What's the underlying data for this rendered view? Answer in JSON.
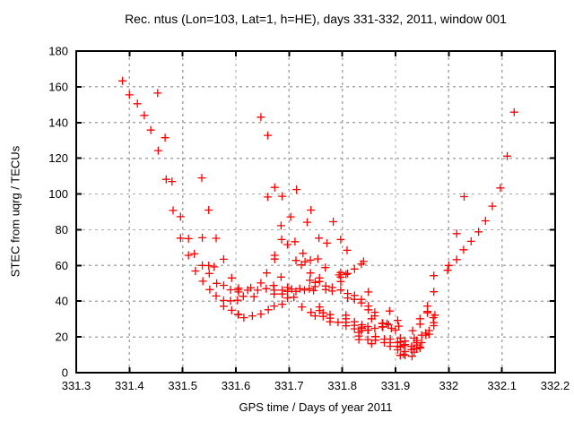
{
  "figure": {
    "title": "Rec. ntus (Lon=103, Lat=1, h=HE), days 331-332, 2011, window 001",
    "xlabel": "GPS time / Days of year 2011",
    "ylabel": "STEC from uqrg / TECUs"
  },
  "chart_data": {
    "type": "scatter",
    "title": "Rec. ntus (Lon=103, Lat=1, h=HE), days 331-332, 2011, window 001",
    "xlabel": "GPS time / Days of year 2011",
    "ylabel": "STEC from uqrg / TECUs",
    "xlim": [
      331.3,
      332.2
    ],
    "ylim": [
      0,
      180
    ],
    "xticks": [
      331.3,
      331.4,
      331.5,
      331.6,
      331.7,
      331.8,
      331.9,
      332,
      332.1,
      332.2
    ],
    "yticks": [
      0,
      20,
      40,
      60,
      80,
      100,
      120,
      140,
      160,
      180
    ],
    "grid": true,
    "legend_position": "none",
    "marker": {
      "shape": "plus",
      "color": "#ff0000",
      "size": 9
    },
    "grid_color": "#a8a8a8",
    "border_color": "#000000",
    "background_color": "#ffffff",
    "series_name": "STEC",
    "points": [
      [
        331.387,
        163.3
      ],
      [
        331.4,
        155.5
      ],
      [
        331.415,
        150.5
      ],
      [
        331.428,
        144.0
      ],
      [
        331.44,
        135.8
      ],
      [
        331.453,
        156.5
      ],
      [
        331.467,
        131.5
      ],
      [
        331.454,
        124.3
      ],
      [
        331.469,
        108.2
      ],
      [
        331.48,
        107.0
      ],
      [
        331.536,
        109.0
      ],
      [
        331.482,
        90.8
      ],
      [
        331.549,
        91.0
      ],
      [
        331.496,
        87.3
      ],
      [
        331.496,
        75.3
      ],
      [
        331.511,
        75.0
      ],
      [
        331.537,
        75.5
      ],
      [
        331.563,
        75.2
      ],
      [
        331.511,
        65.7
      ],
      [
        331.522,
        66.5
      ],
      [
        331.524,
        56.9
      ],
      [
        331.537,
        60.0
      ],
      [
        331.549,
        59.9
      ],
      [
        331.559,
        59.2
      ],
      [
        331.577,
        63.5
      ],
      [
        331.55,
        55.5
      ],
      [
        331.538,
        51.2
      ],
      [
        331.551,
        46.5
      ],
      [
        331.564,
        50.0
      ],
      [
        331.563,
        42.9
      ],
      [
        331.592,
        53.0
      ],
      [
        331.59,
        46.4
      ],
      [
        331.604,
        46.4
      ],
      [
        331.577,
        48.9
      ],
      [
        331.577,
        40.4
      ],
      [
        331.59,
        40.2
      ],
      [
        331.603,
        40.5
      ],
      [
        331.577,
        37.2
      ],
      [
        331.592,
        34.9
      ],
      [
        331.604,
        32.7
      ],
      [
        331.647,
        143.0
      ],
      [
        331.66,
        132.8
      ],
      [
        331.673,
        103.7
      ],
      [
        331.66,
        98.3
      ],
      [
        331.687,
        98.7
      ],
      [
        331.714,
        102.5
      ],
      [
        331.741,
        91.0
      ],
      [
        331.703,
        87.2
      ],
      [
        331.685,
        82.3
      ],
      [
        331.734,
        84.2
      ],
      [
        331.783,
        84.5
      ],
      [
        331.686,
        74.5
      ],
      [
        331.697,
        71.7
      ],
      [
        331.711,
        73.3
      ],
      [
        331.756,
        75.3
      ],
      [
        331.771,
        72.5
      ],
      [
        331.797,
        74.5
      ],
      [
        331.809,
        68.5
      ],
      [
        331.726,
        66.8
      ],
      [
        331.713,
        62.8
      ],
      [
        331.723,
        60.3
      ],
      [
        331.754,
        63.7
      ],
      [
        331.673,
        65.7
      ],
      [
        331.673,
        63.6
      ],
      [
        331.658,
        55.8
      ],
      [
        331.685,
        53.5
      ],
      [
        331.768,
        58.8
      ],
      [
        331.794,
        54.7
      ],
      [
        331.807,
        55.0
      ],
      [
        331.836,
        60.8
      ],
      [
        331.84,
        62.2
      ],
      [
        331.647,
        50.2
      ],
      [
        331.671,
        48.8
      ],
      [
        331.657,
        47.0
      ],
      [
        331.628,
        47.5
      ],
      [
        331.641,
        46.2
      ],
      [
        331.622,
        46.2
      ],
      [
        331.605,
        47.3
      ],
      [
        331.605,
        45.2
      ],
      [
        331.634,
        42.5
      ],
      [
        331.614,
        42.7
      ],
      [
        331.672,
        46.2
      ],
      [
        331.672,
        44.0
      ],
      [
        331.687,
        46.2
      ],
      [
        331.687,
        44.0
      ],
      [
        331.697,
        47.7
      ],
      [
        331.697,
        45.5
      ],
      [
        331.705,
        46.8
      ],
      [
        331.713,
        45.5
      ],
      [
        331.72,
        47.0
      ],
      [
        331.729,
        46.2
      ],
      [
        331.738,
        47.0
      ],
      [
        331.746,
        46.0
      ],
      [
        331.749,
        50.5
      ],
      [
        331.739,
        51.7
      ],
      [
        331.749,
        48.2
      ],
      [
        331.74,
        55.8
      ],
      [
        331.73,
        62.0
      ],
      [
        331.74,
        63.0
      ],
      [
        331.697,
        41.8
      ],
      [
        331.709,
        42.2
      ],
      [
        331.724,
        36.8
      ],
      [
        331.687,
        38.3
      ],
      [
        331.672,
        37.3
      ],
      [
        331.661,
        35.2
      ],
      [
        331.647,
        32.8
      ],
      [
        331.631,
        31.8
      ],
      [
        331.615,
        30.8
      ],
      [
        331.605,
        32.5
      ],
      [
        331.741,
        33.7
      ],
      [
        331.749,
        31.8
      ],
      [
        331.757,
        53.0
      ],
      [
        331.757,
        51.0
      ],
      [
        331.769,
        48.5
      ],
      [
        331.769,
        46.5
      ],
      [
        331.781,
        47.7
      ],
      [
        331.781,
        45.7
      ],
      [
        331.797,
        56.0
      ],
      [
        331.797,
        53.5
      ],
      [
        331.81,
        55.5
      ],
      [
        331.823,
        58.0
      ],
      [
        331.797,
        51.0
      ],
      [
        331.797,
        46.3
      ],
      [
        331.81,
        44.3
      ],
      [
        331.81,
        41.8
      ],
      [
        331.823,
        43.2
      ],
      [
        331.823,
        41.0
      ],
      [
        331.836,
        41.0
      ],
      [
        331.836,
        39.0
      ],
      [
        331.849,
        45.2
      ],
      [
        331.849,
        37.3
      ],
      [
        331.849,
        35.2
      ],
      [
        331.861,
        33.8
      ],
      [
        331.861,
        31.8
      ],
      [
        331.757,
        36.8
      ],
      [
        331.757,
        34.8
      ],
      [
        331.764,
        33.5
      ],
      [
        331.764,
        31.5
      ],
      [
        331.777,
        32.5
      ],
      [
        331.777,
        30.5
      ],
      [
        331.777,
        28.5
      ],
      [
        331.792,
        28.2
      ],
      [
        331.807,
        32.2
      ],
      [
        331.807,
        30.2
      ],
      [
        331.807,
        28.2
      ],
      [
        331.807,
        26.2
      ],
      [
        331.823,
        28.5
      ],
      [
        331.823,
        26.5
      ],
      [
        331.823,
        24.5
      ],
      [
        331.836,
        25.5
      ],
      [
        331.836,
        23.5
      ],
      [
        331.849,
        23.8
      ],
      [
        331.861,
        24.8
      ],
      [
        331.875,
        27.7
      ],
      [
        331.875,
        25.7
      ],
      [
        331.887,
        26.8
      ],
      [
        331.889,
        34.5
      ],
      [
        331.892,
        24.8
      ],
      [
        331.9,
        23.8
      ],
      [
        331.906,
        26.0
      ],
      [
        331.855,
        30.2
      ],
      [
        331.837,
        26.8
      ],
      [
        331.837,
        24.8
      ],
      [
        331.848,
        25.8
      ],
      [
        331.848,
        23.8
      ],
      [
        331.831,
        22.5
      ],
      [
        331.831,
        20.5
      ],
      [
        331.831,
        18.5
      ],
      [
        331.848,
        18.5
      ],
      [
        331.862,
        20.2
      ],
      [
        331.862,
        18.2
      ],
      [
        331.855,
        16.2
      ],
      [
        331.876,
        27.5
      ],
      [
        331.876,
        25.5
      ],
      [
        331.884,
        27.5
      ],
      [
        331.904,
        29.3
      ],
      [
        331.879,
        18.8
      ],
      [
        331.879,
        16.8
      ],
      [
        331.89,
        18.8
      ],
      [
        331.89,
        16.8
      ],
      [
        331.89,
        14.8
      ],
      [
        331.904,
        16.8
      ],
      [
        331.904,
        14.8
      ],
      [
        331.904,
        12.8
      ],
      [
        331.918,
        17.7
      ],
      [
        331.918,
        15.7
      ],
      [
        331.918,
        11.8
      ],
      [
        331.918,
        9.8
      ],
      [
        331.932,
        23.5
      ],
      [
        331.935,
        19.3
      ],
      [
        331.935,
        13.5
      ],
      [
        331.935,
        11.5
      ],
      [
        331.949,
        21.0
      ],
      [
        331.949,
        16.8
      ],
      [
        331.946,
        30.2
      ],
      [
        331.946,
        27.2
      ],
      [
        331.963,
        23.5
      ],
      [
        331.963,
        21.5
      ],
      [
        331.909,
        19.3
      ],
      [
        331.909,
        17.2
      ],
      [
        331.915,
        15.2
      ],
      [
        331.909,
        14.4
      ],
      [
        331.93,
        14.7
      ],
      [
        331.93,
        12.9
      ],
      [
        331.931,
        9.2
      ],
      [
        331.946,
        13.8
      ],
      [
        331.915,
        10.3
      ],
      [
        331.909,
        9.7
      ],
      [
        331.957,
        22.1
      ],
      [
        331.957,
        21.0
      ],
      [
        331.94,
        18.0
      ],
      [
        331.94,
        16.7
      ],
      [
        331.94,
        15.5
      ],
      [
        331.946,
        14.3
      ],
      [
        331.94,
        13.3
      ],
      [
        331.972,
        28.0
      ],
      [
        331.972,
        26.3
      ],
      [
        331.971,
        30.8
      ],
      [
        331.974,
        32.2
      ],
      [
        331.96,
        33.5
      ],
      [
        331.96,
        37.3
      ],
      [
        331.96,
        34.3
      ],
      [
        331.972,
        45.3
      ],
      [
        331.972,
        54.3
      ],
      [
        331.998,
        57.3
      ],
      [
        332.0,
        60.0
      ],
      [
        332.015,
        63.3
      ],
      [
        332.028,
        68.8
      ],
      [
        332.042,
        73.5
      ],
      [
        332.015,
        77.8
      ],
      [
        332.056,
        78.8
      ],
      [
        332.069,
        85.0
      ],
      [
        332.082,
        93.2
      ],
      [
        332.097,
        103.4
      ],
      [
        332.029,
        98.5
      ],
      [
        332.11,
        121.2
      ],
      [
        332.123,
        145.8
      ]
    ]
  }
}
